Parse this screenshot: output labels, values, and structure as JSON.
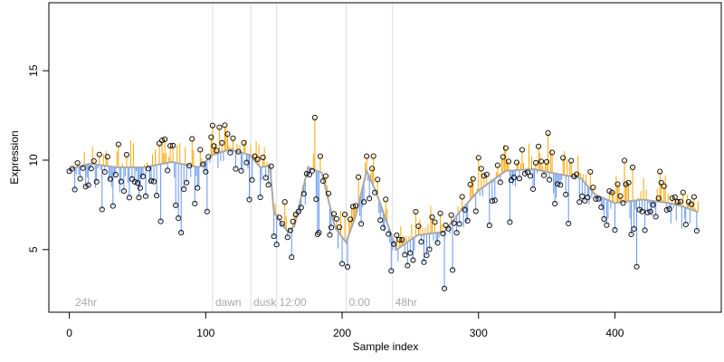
{
  "chart_data": {
    "type": "scatter",
    "title": "",
    "xlabel": "Sample index",
    "ylabel": "Expression",
    "xlim": [
      -15,
      478
    ],
    "ylim": [
      1.5,
      18.8
    ],
    "x_ticks": [
      0,
      100,
      200,
      300,
      400
    ],
    "y_ticks": [
      5,
      10,
      15
    ],
    "phase_markers": [
      {
        "x": 105,
        "label": "dawn"
      },
      {
        "x": 133,
        "label": "dusk"
      },
      {
        "x": 152,
        "label": "12:00"
      },
      {
        "x": 203,
        "label": "0:00"
      },
      {
        "x": 237,
        "label": "48hr"
      }
    ],
    "corner_label": {
      "x": 3,
      "label": "24hr"
    },
    "colors": {
      "above_trend": "#ffa500",
      "below_trend": "#6495ed",
      "trend_line": "#a9a9a9",
      "marker_line": "#dddddd",
      "point_edge": "#000000"
    },
    "anchors": [
      [
        0,
        9.5
      ],
      [
        15,
        9.8
      ],
      [
        35,
        9.6
      ],
      [
        55,
        9.6
      ],
      [
        75,
        9.9
      ],
      [
        95,
        9.6
      ],
      [
        105,
        10.3
      ],
      [
        118,
        10.6
      ],
      [
        132,
        10.3
      ],
      [
        140,
        9.6
      ],
      [
        147,
        9.7
      ],
      [
        150,
        7.1
      ],
      [
        160,
        6.0
      ],
      [
        165,
        6.3
      ],
      [
        175,
        9.6
      ],
      [
        185,
        9.3
      ],
      [
        195,
        6.2
      ],
      [
        203,
        5.4
      ],
      [
        210,
        6.9
      ],
      [
        218,
        9.4
      ],
      [
        225,
        8.2
      ],
      [
        240,
        5.0
      ],
      [
        255,
        5.8
      ],
      [
        275,
        6.0
      ],
      [
        285,
        7.0
      ],
      [
        300,
        8.3
      ],
      [
        320,
        9.4
      ],
      [
        340,
        9.5
      ],
      [
        360,
        9.2
      ],
      [
        375,
        9.0
      ],
      [
        385,
        8.1
      ],
      [
        400,
        7.6
      ],
      [
        420,
        7.8
      ],
      [
        440,
        7.6
      ],
      [
        450,
        7.4
      ],
      [
        461,
        7.1
      ]
    ],
    "n_points": 462,
    "seed": 17
  }
}
